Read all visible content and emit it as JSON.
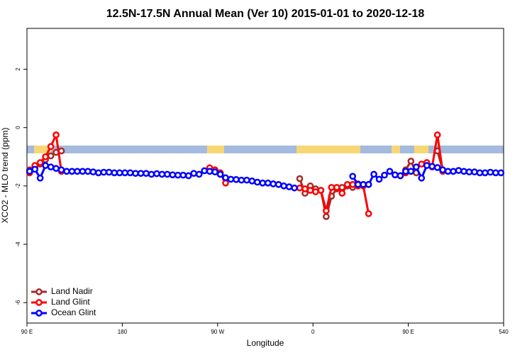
{
  "chart_data": {
    "type": "line",
    "title": "12.5N-17.5N Annual Mean (Ver 10)   2015-01-01 to 2020-12-18",
    "x_label": "Longitude",
    "y_label": "XCO2 - MLO trend (ppm)",
    "xlim": [
      90,
      540
    ],
    "ylim": [
      -6.7,
      3.4
    ],
    "xticks": [
      {
        "value": 90,
        "label": "90 E"
      },
      180,
      {
        "value": 270,
        "label": "90 W"
      },
      {
        "value": 360,
        "label": "0"
      },
      {
        "value": 450,
        "label": "90 E"
      },
      540
    ],
    "yticks": [
      2,
      0,
      -2,
      -4,
      -6
    ],
    "legend": "bottomleft",
    "x": [
      92.5,
      97.5,
      102.5,
      107.5,
      112.5,
      117.5,
      122.5,
      127.5,
      132.5,
      137.5,
      142.5,
      147.5,
      152.5,
      157.5,
      162.5,
      167.5,
      172.5,
      177.5,
      182.5,
      187.5,
      192.5,
      197.5,
      202.5,
      207.5,
      212.5,
      217.5,
      222.5,
      227.5,
      232.5,
      237.5,
      242.5,
      247.5,
      252.5,
      257.5,
      262.5,
      267.5,
      272.5,
      277.5,
      282.5,
      287.5,
      292.5,
      297.5,
      302.5,
      307.5,
      312.5,
      317.5,
      322.5,
      327.5,
      332.5,
      337.5,
      342.5,
      347.5,
      352.5,
      357.5,
      362.5,
      367.5,
      372.5,
      377.5,
      382.5,
      387.5,
      392.5,
      397.5,
      402.5,
      407.5,
      412.5,
      417.5,
      422.5,
      427.5,
      432.5,
      437.5,
      442.5,
      447.5,
      452.5,
      457.5,
      462.5,
      467.5,
      472.5,
      477.5,
      482.5,
      487.5,
      492.5,
      497.5,
      502.5,
      507.5,
      512.5,
      517.5,
      522.5,
      527.5,
      532.5,
      537.5
    ],
    "series": [
      {
        "name": "Land Nadir",
        "color": "#a52a2a",
        "values": [
          -1.45,
          -1.35,
          -1.25,
          -1.1,
          -0.97,
          -0.85,
          -0.8,
          null,
          null,
          null,
          null,
          null,
          null,
          null,
          null,
          null,
          null,
          null,
          null,
          null,
          null,
          null,
          null,
          null,
          null,
          null,
          null,
          null,
          null,
          null,
          null,
          null,
          null,
          null,
          -1.42,
          -1.5,
          -1.6,
          -1.75,
          null,
          null,
          null,
          null,
          null,
          null,
          null,
          null,
          null,
          null,
          null,
          null,
          null,
          -1.75,
          -2.25,
          -2.0,
          -2.1,
          -2.15,
          -3.05,
          -2.35,
          -2.1,
          -2.05,
          -2.0,
          -2.05,
          -1.93,
          -1.95,
          -1.95,
          null,
          null,
          null,
          null,
          null,
          -1.65,
          -1.45,
          -1.15,
          -1.55,
          null,
          null,
          null,
          -0.8,
          -1.45,
          null,
          null,
          null,
          null,
          null,
          null,
          null,
          null,
          null,
          null,
          null
        ]
      },
      {
        "name": "Land Glint",
        "color": "#ff0000",
        "values": [
          -1.55,
          -1.3,
          -1.2,
          -1.0,
          -0.65,
          -0.25,
          -1.5,
          null,
          null,
          null,
          null,
          null,
          null,
          null,
          null,
          null,
          null,
          null,
          null,
          null,
          null,
          null,
          null,
          null,
          null,
          null,
          null,
          null,
          null,
          null,
          null,
          null,
          null,
          null,
          -1.38,
          -1.45,
          -1.55,
          -1.9,
          null,
          null,
          null,
          null,
          null,
          null,
          null,
          null,
          null,
          null,
          null,
          null,
          null,
          -2.07,
          -2.1,
          -2.15,
          -2.2,
          -2.15,
          -2.85,
          -2.05,
          -2.05,
          -2.25,
          -1.95,
          -1.95,
          -2.0,
          -2.0,
          -2.95,
          null,
          null,
          null,
          null,
          null,
          -1.65,
          -1.55,
          -1.5,
          -1.35,
          -1.25,
          -1.2,
          -1.35,
          -0.25,
          -1.5,
          null,
          null,
          null,
          null,
          null,
          null,
          null,
          null,
          null,
          null,
          null
        ]
      },
      {
        "name": "Ocean Glint",
        "color": "#0000ff",
        "values": [
          -1.5,
          -1.43,
          -1.73,
          -1.3,
          -1.35,
          -1.4,
          -1.45,
          -1.5,
          -1.5,
          -1.5,
          -1.5,
          -1.5,
          -1.52,
          -1.55,
          -1.53,
          -1.53,
          -1.55,
          -1.55,
          -1.55,
          -1.55,
          -1.57,
          -1.57,
          -1.57,
          -1.6,
          -1.58,
          -1.6,
          -1.6,
          -1.62,
          -1.63,
          -1.63,
          -1.65,
          -1.57,
          -1.6,
          -1.48,
          -1.5,
          -1.52,
          -1.6,
          -1.72,
          -1.77,
          -1.78,
          -1.8,
          -1.8,
          -1.83,
          -1.87,
          -1.9,
          -1.9,
          -1.93,
          -1.95,
          -2.0,
          -2.03,
          -2.07,
          null,
          null,
          null,
          null,
          null,
          null,
          null,
          null,
          null,
          null,
          -1.67,
          -1.95,
          -1.95,
          -1.95,
          -1.6,
          -1.77,
          -1.63,
          -1.5,
          -1.62,
          -1.65,
          -1.5,
          -1.5,
          -1.35,
          -1.73,
          -1.3,
          -1.33,
          -1.37,
          -1.45,
          -1.5,
          -1.5,
          -1.47,
          -1.5,
          -1.52,
          -1.52,
          -1.55,
          -1.55,
          -1.53,
          -1.55,
          -1.55
        ]
      }
    ]
  }
}
